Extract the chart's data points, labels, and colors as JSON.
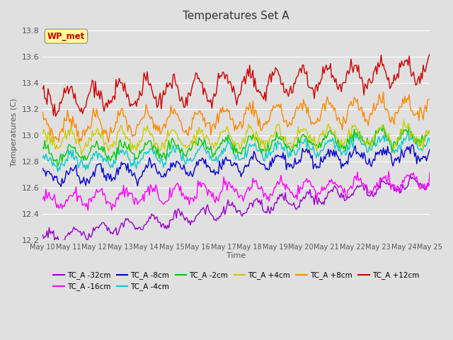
{
  "title": "Temperatures Set A",
  "xlabel": "Time",
  "ylabel": "Temperatures (C)",
  "ylim": [
    12.2,
    13.85
  ],
  "xlim": [
    0,
    359
  ],
  "background_color": "#e0e0e0",
  "axes_bg_color": "#e0e0e0",
  "grid_color": "#ffffff",
  "wp_met_label": "WP_met",
  "wp_met_color": "#cc0000",
  "wp_met_bg": "#ffff99",
  "xtick_labels": [
    "May 10",
    "May 11",
    "May 12",
    "May 13",
    "May 14",
    "May 15",
    "May 16",
    "May 17",
    "May 18",
    "May 19",
    "May 20",
    "May 21",
    "May 22",
    "May 23",
    "May 24",
    "May 25"
  ],
  "series": [
    {
      "label": "TC_A -32cm",
      "color": "#9900cc",
      "base": 12.21,
      "end": 12.65,
      "amp": 0.045,
      "period": 24,
      "phase": 0.0,
      "noise": 0.018,
      "seed": 1
    },
    {
      "label": "TC_A -16cm",
      "color": "#ff00ff",
      "base": 12.5,
      "end": 12.65,
      "amp": 0.055,
      "period": 24,
      "phase": 0.4,
      "noise": 0.022,
      "seed": 2
    },
    {
      "label": "TC_A -8cm",
      "color": "#0000cc",
      "base": 12.68,
      "end": 12.87,
      "amp": 0.05,
      "period": 24,
      "phase": 0.6,
      "noise": 0.022,
      "seed": 3
    },
    {
      "label": "TC_A -4cm",
      "color": "#00cccc",
      "base": 12.79,
      "end": 12.95,
      "amp": 0.05,
      "period": 24,
      "phase": 0.8,
      "noise": 0.022,
      "seed": 4
    },
    {
      "label": "TC_A -2cm",
      "color": "#00cc00",
      "base": 12.85,
      "end": 13.0,
      "amp": 0.055,
      "period": 24,
      "phase": 1.0,
      "noise": 0.022,
      "seed": 5
    },
    {
      "label": "TC_A +4cm",
      "color": "#cccc00",
      "base": 12.96,
      "end": 13.0,
      "amp": 0.065,
      "period": 24,
      "phase": 1.2,
      "noise": 0.025,
      "seed": 6
    },
    {
      "label": "TC_A +8cm",
      "color": "#ff8800",
      "base": 13.05,
      "end": 13.22,
      "amp": 0.08,
      "period": 24,
      "phase": 1.4,
      "noise": 0.028,
      "seed": 7
    },
    {
      "label": "TC_A +12cm",
      "color": "#cc0000",
      "base": 13.26,
      "end": 13.5,
      "amp": 0.09,
      "period": 24,
      "phase": 1.6,
      "noise": 0.03,
      "seed": 8
    }
  ],
  "n_points": 360,
  "figsize": [
    6.4,
    4.8
  ],
  "dpi": 100,
  "title_fontsize": 11,
  "tick_fontsize": 7,
  "ylabel_fontsize": 8,
  "legend_fontsize": 7.5,
  "linewidth": 1.0
}
